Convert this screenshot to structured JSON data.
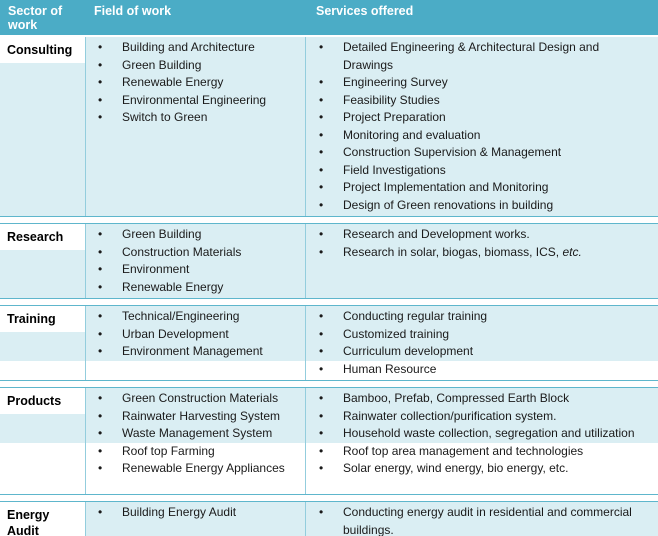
{
  "colors": {
    "header_bg": "#4bacc6",
    "header_text": "#ffffff",
    "row_bg": "#daeef3",
    "border": "#93cddd",
    "separator_line": "#5eb6cc",
    "body_text": "#1a1a1a"
  },
  "glyphs": {
    "bullet": "•"
  },
  "table": {
    "header": [
      "Sector of work",
      "Field of work",
      "Services offered"
    ],
    "sections": [
      {
        "sector": "Consulting",
        "fields": [
          "Building and Architecture",
          "Green Building",
          "Renewable Energy",
          "Environmental Engineering",
          "Switch to Green"
        ],
        "services": [
          "Detailed Engineering & Architectural Design and Drawings",
          "Engineering Survey",
          "Feasibility Studies",
          "Project Preparation",
          "Monitoring and evaluation",
          "Construction Supervision & Management",
          "Field Investigations",
          "Project Implementation and Monitoring",
          "Design of Green renovations in building"
        ]
      },
      {
        "sector": "Research",
        "fields": [
          "Green Building",
          "Construction Materials",
          "Environment",
          "Renewable Energy"
        ],
        "services": [
          "Research and Development works.",
          {
            "text": "Research in solar, biogas, biomass, ICS, ",
            "italic": "etc."
          }
        ]
      },
      {
        "sector": "Training",
        "fields": [
          "Technical/Engineering",
          "Urban Development",
          "Environment Management"
        ],
        "services": [
          "Conducting regular training",
          "Customized training",
          "Curriculum development",
          "Human Resource"
        ]
      },
      {
        "sector": "Products",
        "fields": [
          "Green Construction Materials",
          "Rainwater Harvesting System",
          "Waste Management System",
          "Roof top Farming",
          "Renewable Energy Appliances"
        ],
        "services": [
          "Bamboo, Prefab, Compressed Earth Block",
          "Rainwater collection/purification system.",
          "Household waste collection, segregation and utilization",
          "Roof top area management and technologies",
          "Solar energy, wind energy, bio energy, etc."
        ]
      },
      {
        "sector": "Energy Audit",
        "fields": [
          "Building Energy Audit"
        ],
        "services": [
          "Conducting energy audit in residential and commercial buildings."
        ]
      }
    ]
  }
}
